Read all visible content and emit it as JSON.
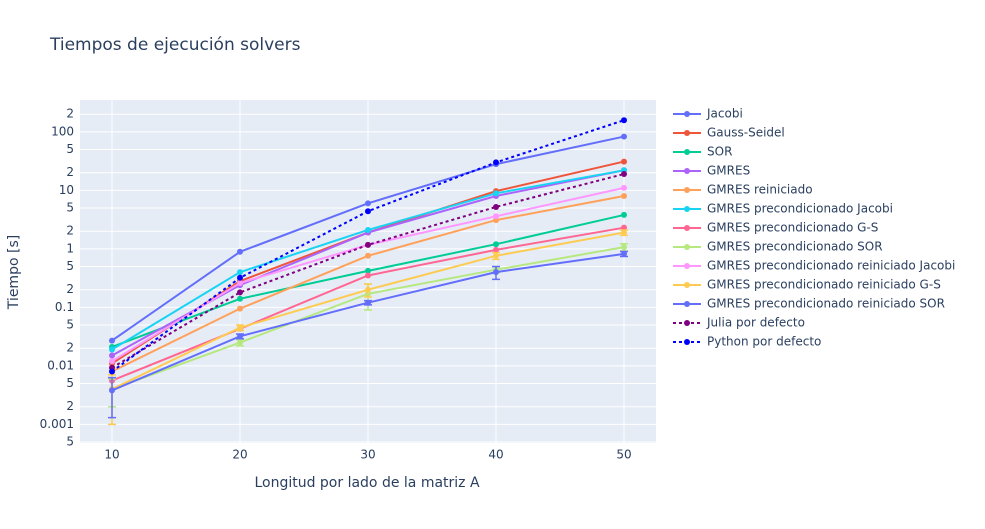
{
  "chart_data": {
    "type": "line",
    "title": "Tiempos de ejecución solvers",
    "x_label": "Longitud por lado de la matriz A",
    "y_label": "Tiempo [s]",
    "log_y": true,
    "grid": true,
    "legend_position": "right",
    "x": [
      10,
      20,
      30,
      40,
      50
    ],
    "xlim": [
      7.5,
      52.5
    ],
    "xticks": [
      10,
      20,
      30,
      40,
      50
    ],
    "ylim": [
      0.00048,
      350
    ],
    "yticks": [
      {
        "value": 0.0005,
        "label": "5"
      },
      0.001,
      {
        "value": 0.002,
        "label": "2"
      },
      {
        "value": 0.005,
        "label": "5"
      },
      0.01,
      {
        "value": 0.02,
        "label": "2"
      },
      {
        "value": 0.05,
        "label": "5"
      },
      0.1,
      {
        "value": 0.2,
        "label": "2"
      },
      {
        "value": 0.5,
        "label": "5"
      },
      1,
      {
        "value": 2,
        "label": "2"
      },
      {
        "value": 5,
        "label": "5"
      },
      10,
      {
        "value": 20,
        "label": "2"
      },
      {
        "value": 50,
        "label": "5"
      },
      100,
      {
        "value": 200,
        "label": "2"
      }
    ],
    "series": [
      {
        "name": "Jacobi",
        "color": "#636efa",
        "values": [
          0.027,
          0.89,
          6.0,
          28,
          83
        ]
      },
      {
        "name": "Gauss-Seidel",
        "color": "#ef553b",
        "values": [
          0.011,
          0.28,
          1.9,
          9.7,
          31
        ]
      },
      {
        "name": "SOR",
        "color": "#00cc96",
        "values": [
          0.021,
          0.14,
          0.42,
          1.2,
          3.8
        ]
      },
      {
        "name": "GMRES",
        "color": "#ab63fa",
        "values": [
          0.015,
          0.24,
          1.9,
          8.0,
          22
        ]
      },
      {
        "name": "GMRES reiniciado",
        "color": "#ffa15a",
        "values": [
          0.008,
          0.095,
          0.76,
          3.1,
          8.0
        ]
      },
      {
        "name": "GMRES precondicionado Jacobi",
        "color": "#19d3f3",
        "values": [
          0.019,
          0.4,
          2.1,
          8.9,
          22
        ]
      },
      {
        "name": "GMRES precondicionado G-S",
        "color": "#ff6692",
        "values": [
          0.0056,
          0.043,
          0.35,
          0.96,
          2.3
        ]
      },
      {
        "name": "GMRES precondicionado SOR",
        "color": "#b6e880",
        "values": [
          0.004,
          0.025,
          0.17,
          0.44,
          1.07
        ],
        "errors": [
          0.002,
          0.003,
          0.08,
          0.05,
          0.15
        ]
      },
      {
        "name": "GMRES precondicionado reiniciado Jacobi",
        "color": "#ff97ff",
        "values": [
          0.012,
          0.26,
          1.17,
          3.6,
          11
        ]
      },
      {
        "name": "GMRES precondicionado reiniciado G-S",
        "color": "#fecb52",
        "values": [
          0.004,
          0.045,
          0.2,
          0.76,
          1.9
        ],
        "errors": [
          0.003,
          0.005,
          0.05,
          0.1,
          0.2
        ]
      },
      {
        "name": "GMRES precondicionado reiniciado SOR",
        "color": "#636efa",
        "values": [
          0.0038,
          0.032,
          0.12,
          0.4,
          0.82
        ],
        "errors": [
          0.0025,
          0.003,
          0.01,
          0.1,
          0.08
        ]
      },
      {
        "name": "Julia por defecto",
        "color": "#800080",
        "dash": true,
        "values": [
          0.0093,
          0.18,
          1.17,
          5.2,
          19
        ]
      },
      {
        "name": "Python por defecto",
        "color": "#0000ff",
        "dash": true,
        "values": [
          0.008,
          0.32,
          4.4,
          30,
          158
        ]
      }
    ]
  }
}
